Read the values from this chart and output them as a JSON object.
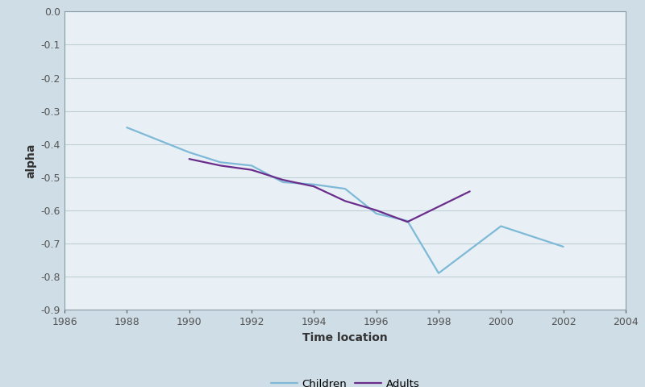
{
  "children_x": [
    1988,
    1990,
    1991,
    1992,
    1993,
    1994,
    1995,
    1996,
    1997,
    1998,
    2000,
    2002
  ],
  "children_y": [
    -0.35,
    -0.425,
    -0.455,
    -0.465,
    -0.515,
    -0.522,
    -0.535,
    -0.61,
    -0.632,
    -0.79,
    -0.648,
    -0.71
  ],
  "adults_x": [
    1990,
    1991,
    1992,
    1993,
    1994,
    1995,
    1996,
    1997,
    1999
  ],
  "adults_y": [
    -0.445,
    -0.465,
    -0.478,
    -0.508,
    -0.528,
    -0.572,
    -0.6,
    -0.635,
    -0.543
  ],
  "children_color": "#7eb9d8",
  "adults_color": "#6b2d8b",
  "xlabel": "Time location",
  "ylabel": "alpha",
  "xlim": [
    1986,
    2004
  ],
  "ylim": [
    -0.9,
    0.0
  ],
  "yticks": [
    0.0,
    -0.1,
    -0.2,
    -0.3,
    -0.4,
    -0.5,
    -0.6,
    -0.7,
    -0.8,
    -0.9
  ],
  "xticks": [
    1986,
    1988,
    1990,
    1992,
    1994,
    1996,
    1998,
    2000,
    2002,
    2004
  ],
  "background_color": "#cfdde6",
  "plot_bg_color": "#e8f0f5",
  "legend_children": "Children",
  "legend_adults": "Adults",
  "grid_color": "#c0cdd4",
  "spine_color": "#8899a6"
}
